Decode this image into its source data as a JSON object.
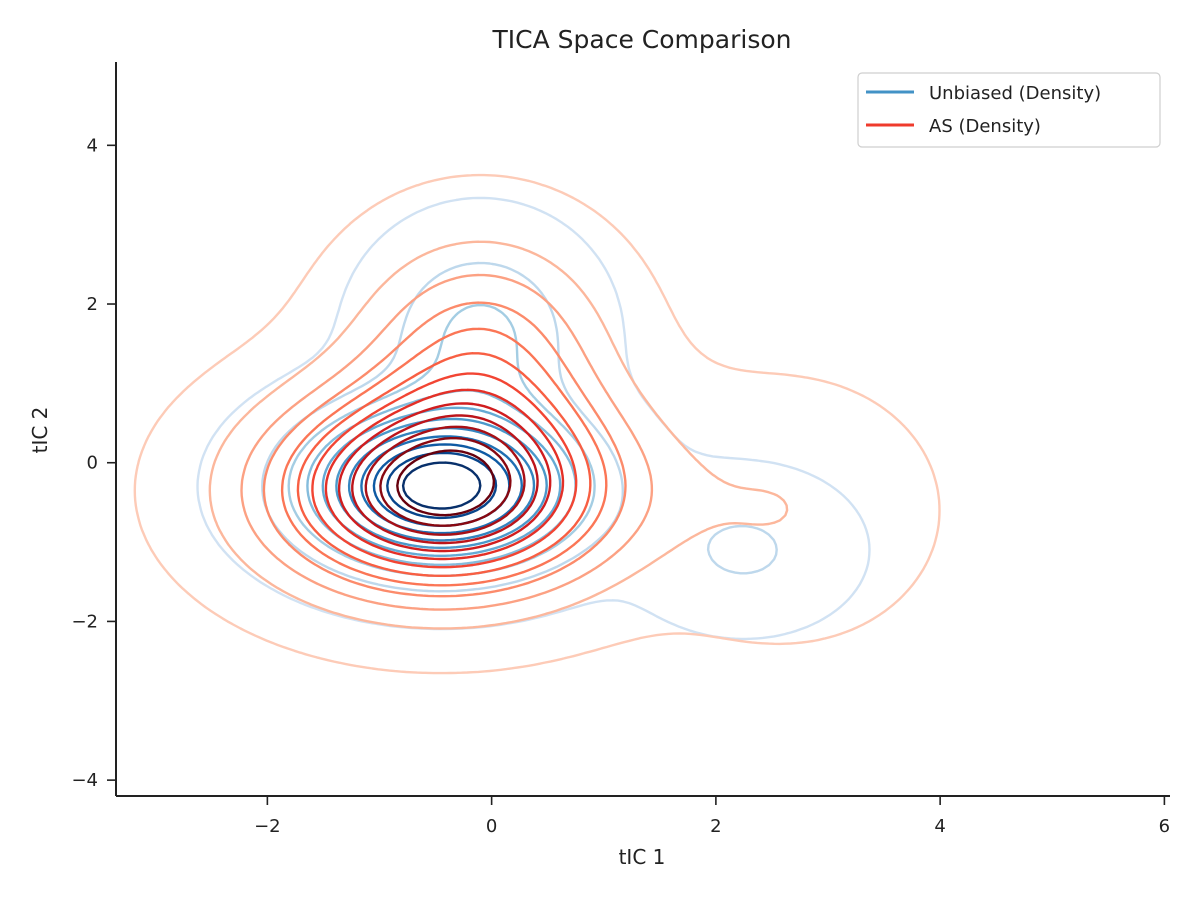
{
  "chart_data": {
    "type": "contour",
    "title": "TICA Space Comparison",
    "xlabel": "tIC 1",
    "ylabel": "tIC 2",
    "xlim": [
      -3.35,
      6.05
    ],
    "ylim": [
      -4.2,
      5.05
    ],
    "x_ticks": [
      {
        "value": -2,
        "label": "−2"
      },
      {
        "value": 0,
        "label": "0"
      },
      {
        "value": 2,
        "label": "2"
      },
      {
        "value": 4,
        "label": "4"
      },
      {
        "value": 6,
        "label": "6"
      }
    ],
    "y_ticks": [
      {
        "value": -4,
        "label": "−4"
      },
      {
        "value": -2,
        "label": "−2"
      },
      {
        "value": 0,
        "label": "0"
      },
      {
        "value": 2,
        "label": "2"
      },
      {
        "value": 4,
        "label": "4"
      }
    ],
    "grid": false,
    "legend": {
      "position": "top-right",
      "entries": [
        {
          "label": "Unbiased (Density)",
          "color": "#4292c6"
        },
        {
          "label": "AS (Density)",
          "color": "#ef3b2c"
        }
      ]
    },
    "series": [
      {
        "name": "Unbiased (Density)",
        "colormap": "Blues",
        "levels": 11,
        "components": [
          {
            "mx": -0.45,
            "my": -0.3,
            "sx": 0.75,
            "sy": 0.62,
            "w": 1.0
          },
          {
            "mx": -0.1,
            "my": 1.6,
            "sx": 0.55,
            "sy": 0.75,
            "w": 0.22
          },
          {
            "mx": 2.25,
            "my": -1.1,
            "sx": 0.55,
            "sy": 0.55,
            "w": 0.12
          }
        ]
      },
      {
        "name": "AS (Density)",
        "colormap": "Reds",
        "levels": 13,
        "components": [
          {
            "mx": -0.45,
            "my": -0.35,
            "sx": 0.95,
            "sy": 0.8,
            "w": 1.0
          },
          {
            "mx": -0.1,
            "my": 1.3,
            "sx": 0.7,
            "sy": 0.95,
            "w": 0.32
          },
          {
            "mx": 2.6,
            "my": -0.6,
            "sx": 0.75,
            "sy": 0.9,
            "w": 0.09
          }
        ]
      }
    ]
  }
}
